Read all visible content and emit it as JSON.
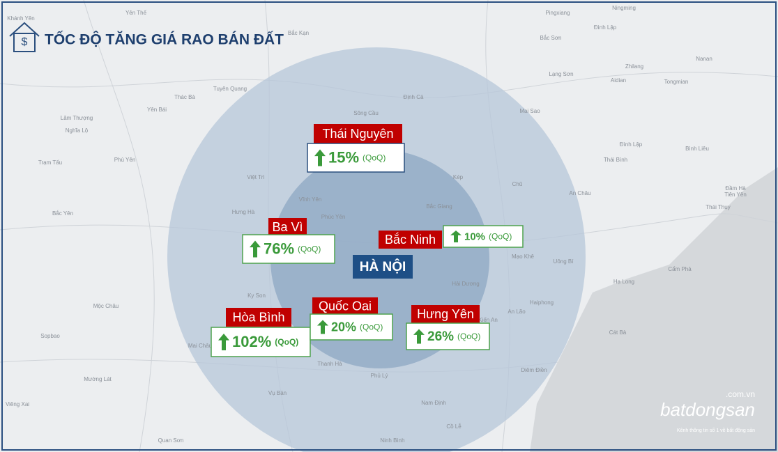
{
  "header": {
    "title": "TỐC ĐỘ TĂNG GIÁ RAO BÁN ĐẤT"
  },
  "center": {
    "label": "HÀ NỘI"
  },
  "regions": [
    {
      "name": "Thái Nguyên",
      "change": "15%",
      "period": "(QoQ)"
    },
    {
      "name": "Ba Vì",
      "change": "76%",
      "period": "(QoQ)"
    },
    {
      "name": "Bắc Ninh",
      "change": "10%",
      "period": "(QoQ)"
    },
    {
      "name": "Hòa Bình",
      "change": "102%",
      "period": "(QoQ)"
    },
    {
      "name": "Quốc Oai",
      "change": "20%",
      "period": "(QoQ)"
    },
    {
      "name": "Hưng Yên",
      "change": "26%",
      "period": "(QoQ)"
    }
  ],
  "map_labels": [
    "Khánh Yên",
    "Yên Thế",
    "Bắc Kạn",
    "Pingxiang",
    "Ningming",
    "Đình Lập",
    "Lạng Sơn",
    "Bắc Sơn",
    "Zhilang",
    "Nanan",
    "Aidian",
    "Tongmian",
    "Tuyên Quang",
    "Yên Bái",
    "Thác Bà",
    "Sông Cầu",
    "Định Cả",
    "Mai Sao",
    "Đình Lập",
    "Bình Liêu",
    "Thái Bình",
    "Việt Trì",
    "Vĩnh Yên",
    "Phúc Yên",
    "Bắc Giang",
    "Kép",
    "Chũ",
    "An Châu",
    "Đầm Hà",
    "Tiên Yên",
    "Cẩm Phả",
    "Hạ Long",
    "Uông Bí",
    "Mạo Khê",
    "Hải Dương",
    "Haiphong",
    "An Lão",
    "Kiến An",
    "Cát Bà",
    "Diêm Điền",
    "Thanh Hà",
    "Phủ Lý",
    "Nam Định",
    "Ninh Bình",
    "Vụ Bản",
    "Mai Châu",
    "Mộc Châu",
    "Mường Lát",
    "Viêng Xai",
    "Sopbao",
    "Quan Sơn",
    "Cồ Lễ",
    "Ky Son",
    "Phù Yên",
    "Bắc Yên",
    "Trạm Tấu",
    "Nghĩa Lộ",
    "Lâm Thượng",
    "Hưng Hà",
    "Thái Thụy"
  ],
  "brand": {
    "domain": ".com.vn",
    "name": "batdongsan",
    "tagline": "Kênh thông tin số 1 về bất động sản"
  }
}
